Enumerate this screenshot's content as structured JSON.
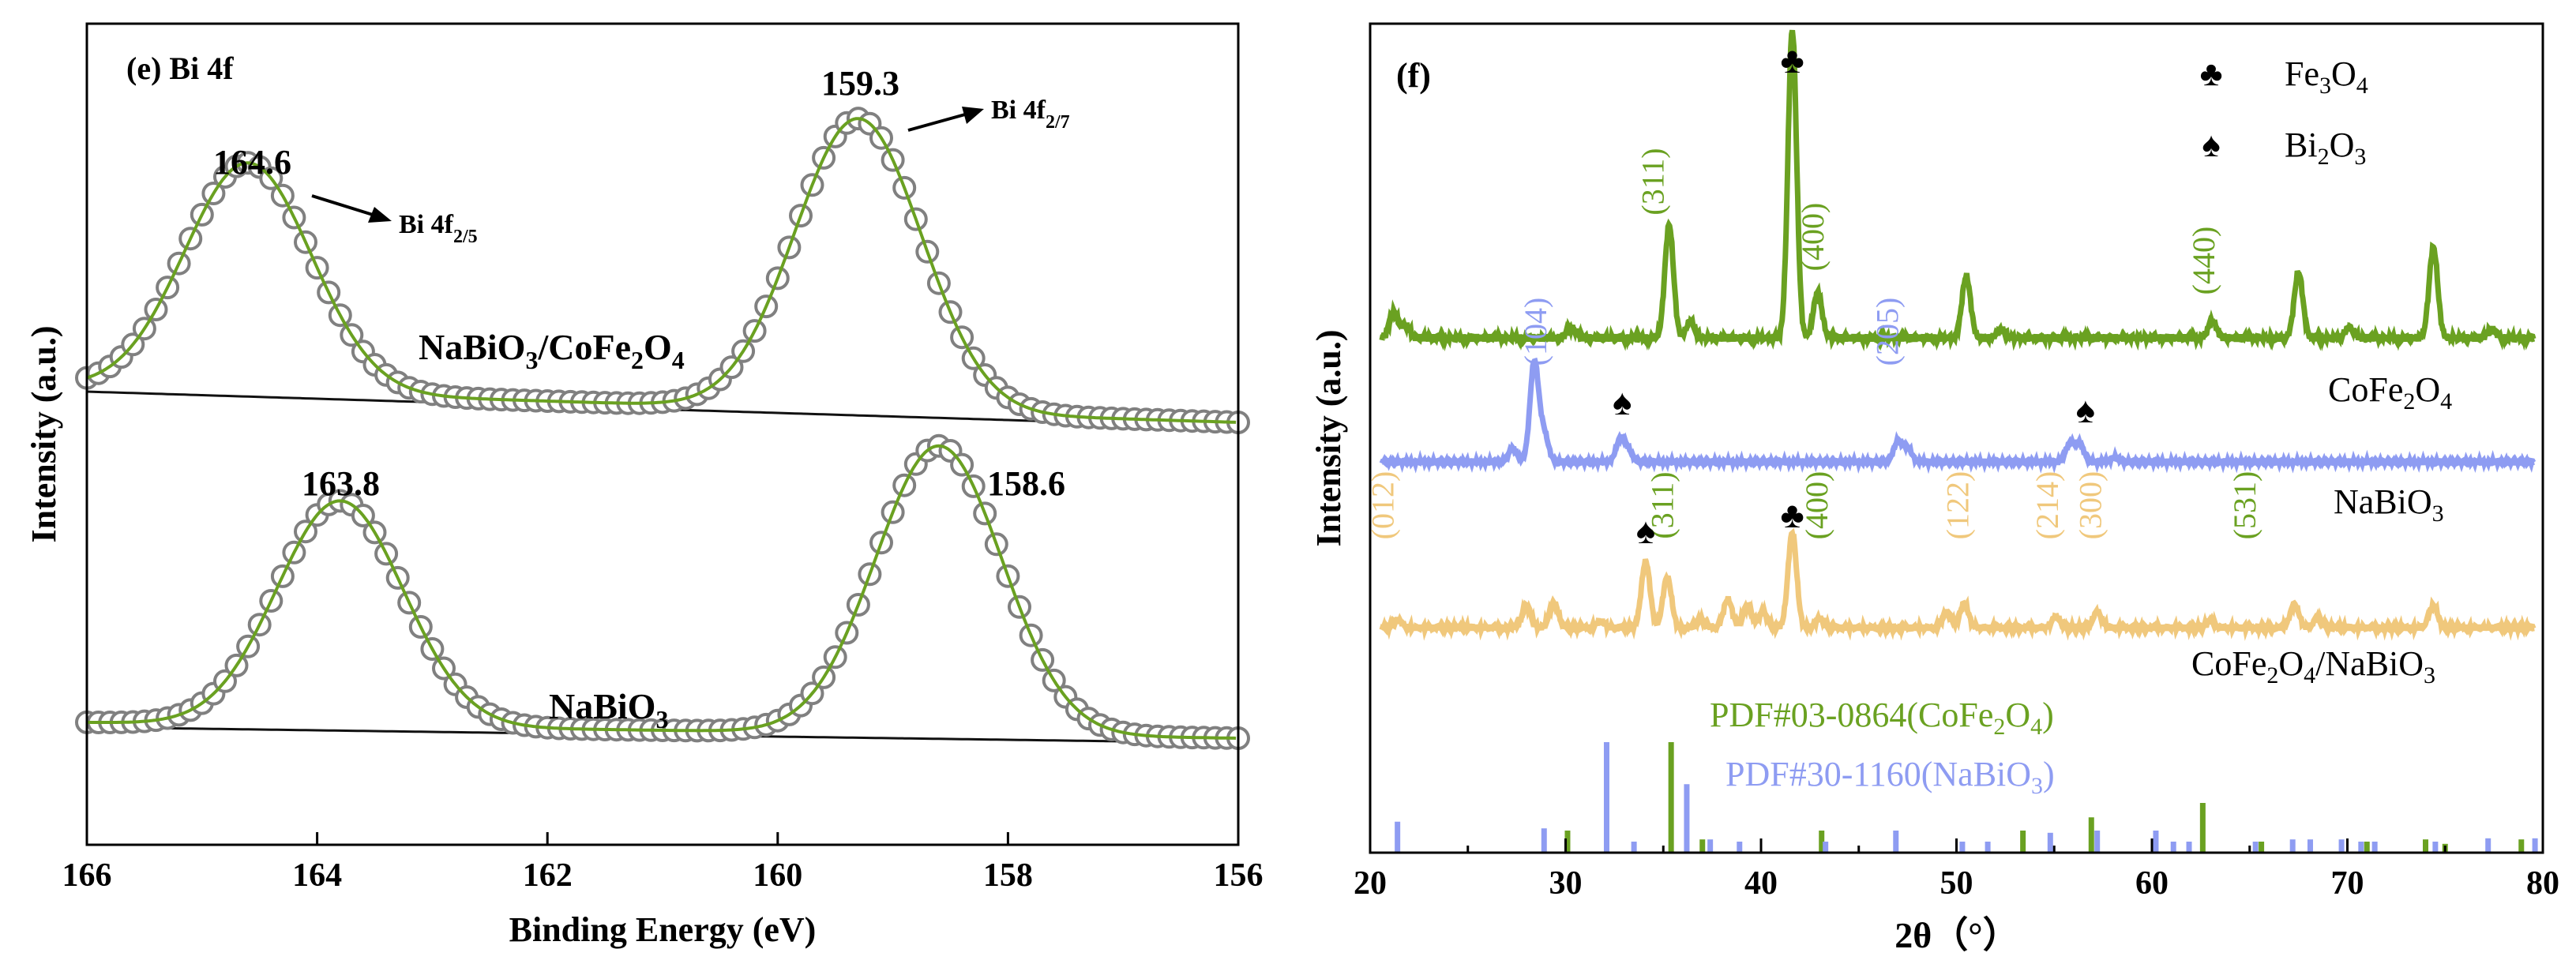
{
  "chart_data": [
    {
      "type": "line",
      "panel_label": "(e) Bi 4f",
      "xlabel": "Binding Energy (eV)",
      "ylabel": "Intensity (a.u.)",
      "xlim": [
        166,
        156
      ],
      "x_ticks": [
        "166",
        "164",
        "162",
        "160",
        "158",
        "156"
      ],
      "series": [
        {
          "name": "NaBiO3/CoFe2O4",
          "label_main": "NaBiO",
          "label_sub1": "3",
          "label_mid": "/CoFe",
          "label_sub2": "2",
          "label_o": "O",
          "label_sub3": "4",
          "peaks": [
            {
              "center": 164.6,
              "label": "164.6",
              "assignment": "Bi 4f",
              "assignment_sub": "2/5"
            },
            {
              "center": 159.3,
              "label": "159.3",
              "assignment": "Bi 4f",
              "assignment_sub": "2/7"
            }
          ]
        },
        {
          "name": "NaBiO3",
          "label_main": "NaBiO",
          "label_sub1": "3",
          "peaks": [
            {
              "center": 163.8,
              "label": "163.8"
            },
            {
              "center": 158.6,
              "label": "158.6"
            }
          ]
        }
      ],
      "colors": {
        "fit": "#6aa121",
        "markers": "#808080",
        "background": "#111111"
      }
    },
    {
      "type": "line",
      "panel_label": "(f)",
      "xlabel": "2θ（°）",
      "ylabel": "Intensity (a.u.)",
      "xlim": [
        20,
        80
      ],
      "x_ticks": [
        "20",
        "30",
        "40",
        "50",
        "60",
        "70",
        "80"
      ],
      "legend": {
        "position": "top-right",
        "items": [
          {
            "symbol": "♣",
            "label": "Fe",
            "sub": "3",
            "label2": "O",
            "sub2": "4"
          },
          {
            "symbol": "♠",
            "label": "Bi",
            "sub": "2",
            "label2": "O",
            "sub2": "3"
          }
        ]
      },
      "series": [
        {
          "name": "CoFe2O4",
          "color": "#6aa121",
          "label_parts": [
            "CoFe",
            "2",
            "O",
            "4"
          ],
          "peaks": [
            [
              21.2,
              0.12
            ],
            [
              21.8,
              0.06
            ],
            [
              30.3,
              0.05
            ],
            [
              35.3,
              0.55
            ],
            [
              36.4,
              0.08
            ],
            [
              41.6,
              1.5
            ],
            [
              42.9,
              0.22
            ],
            [
              50.5,
              0.3
            ],
            [
              52.3,
              0.04
            ],
            [
              63.1,
              0.08
            ],
            [
              67.5,
              0.32
            ],
            [
              70.1,
              0.05
            ],
            [
              74.4,
              0.44
            ],
            [
              77.4,
              0.04
            ]
          ],
          "hkl": [
            {
              "x": 35.0,
              "label": "(311)"
            },
            {
              "x": 43.2,
              "label": "(400)"
            },
            {
              "x": 63.2,
              "label": "(440)"
            }
          ],
          "markers": [
            {
              "x": 41.6,
              "symbol": "♣"
            }
          ]
        },
        {
          "name": "NaBiO3",
          "color": "#8e9cf2",
          "label_parts": [
            "NaBiO",
            "3"
          ],
          "peaks": [
            [
              27.3,
              0.12
            ],
            [
              28.4,
              0.9
            ],
            [
              28.9,
              0.25
            ],
            [
              32.8,
              0.2
            ],
            [
              33.2,
              0.1
            ],
            [
              47.0,
              0.18
            ],
            [
              47.5,
              0.12
            ],
            [
              55.8,
              0.16
            ],
            [
              56.3,
              0.16
            ],
            [
              58.1,
              0.04
            ]
          ],
          "hkl": [
            {
              "x": 29.0,
              "label": "(104)"
            },
            {
              "x": 47.0,
              "label": "(205)"
            }
          ],
          "markers": [
            {
              "x": 32.9,
              "symbol": "♠"
            },
            {
              "x": 56.6,
              "symbol": "♠"
            }
          ]
        },
        {
          "name": "CoFe2O4/NaBiO3",
          "color": "#f0c87c",
          "label_parts": [
            "CoFe",
            "2",
            "O",
            "4",
            "/NaBiO",
            "3"
          ],
          "peaks": [
            [
              21.4,
              0.05
            ],
            [
              28.0,
              0.14
            ],
            [
              29.4,
              0.16
            ],
            [
              31.8,
              0.04
            ],
            [
              34.1,
              0.42
            ],
            [
              35.2,
              0.32
            ],
            [
              36.9,
              0.05
            ],
            [
              38.3,
              0.18
            ],
            [
              39.3,
              0.14
            ],
            [
              40.1,
              0.1
            ],
            [
              41.6,
              0.6
            ],
            [
              43.0,
              0.06
            ],
            [
              49.5,
              0.1
            ],
            [
              50.4,
              0.15
            ],
            [
              55.1,
              0.07
            ],
            [
              57.2,
              0.1
            ],
            [
              63.0,
              0.04
            ],
            [
              67.3,
              0.15
            ],
            [
              68.5,
              0.06
            ],
            [
              74.4,
              0.14
            ]
          ],
          "hkl": [
            {
              "x": 21.2,
              "label": "(012)",
              "color": "#f0c87c"
            },
            {
              "x": 35.5,
              "label": "(311)",
              "color": "#6aa121"
            },
            {
              "x": 43.4,
              "label": "(400)",
              "color": "#6aa121"
            },
            {
              "x": 50.6,
              "label": "(122)",
              "color": "#f0c87c"
            },
            {
              "x": 55.2,
              "label": "(214)",
              "color": "#f0c87c"
            },
            {
              "x": 57.4,
              "label": "(300)",
              "color": "#f0c87c"
            },
            {
              "x": 65.3,
              "label": "(531)",
              "color": "#6aa121"
            }
          ],
          "markers": [
            {
              "x": 34.1,
              "symbol": "♠"
            },
            {
              "x": 41.6,
              "symbol": "♣"
            }
          ]
        }
      ],
      "references": [
        {
          "name": "PDF#03-0864(CoFe2O4)",
          "color": "#6aa121",
          "label_parts": [
            "PDF#03-0864(CoFe",
            "2",
            "O",
            "4",
            ")"
          ],
          "sticks": [
            [
              30.1,
              0.2
            ],
            [
              35.4,
              1.0
            ],
            [
              37.0,
              0.12
            ],
            [
              43.1,
              0.2
            ],
            [
              53.4,
              0.2
            ],
            [
              56.9,
              0.32
            ],
            [
              62.6,
              0.45
            ],
            [
              65.6,
              0.1
            ],
            [
              71.0,
              0.1
            ],
            [
              74.0,
              0.12
            ],
            [
              75.0,
              0.08
            ],
            [
              78.9,
              0.12
            ]
          ]
        },
        {
          "name": "PDF#30-1160(NaBiO3)",
          "color": "#8e9cf2",
          "label_parts": [
            "PDF#30-1160(NaBiO",
            "3",
            ")"
          ],
          "sticks": [
            [
              21.4,
              0.28
            ],
            [
              28.9,
              0.22
            ],
            [
              32.1,
              1.0
            ],
            [
              33.5,
              0.1
            ],
            [
              36.2,
              0.62
            ],
            [
              37.4,
              0.12
            ],
            [
              38.9,
              0.1
            ],
            [
              43.3,
              0.1
            ],
            [
              46.9,
              0.2
            ],
            [
              50.3,
              0.1
            ],
            [
              51.6,
              0.1
            ],
            [
              54.8,
              0.18
            ],
            [
              57.2,
              0.2
            ],
            [
              60.2,
              0.2
            ],
            [
              61.1,
              0.1
            ],
            [
              61.9,
              0.1
            ],
            [
              65.3,
              0.1
            ],
            [
              67.2,
              0.12
            ],
            [
              68.1,
              0.12
            ],
            [
              69.7,
              0.12
            ],
            [
              70.7,
              0.1
            ],
            [
              71.4,
              0.1
            ],
            [
              74.5,
              0.1
            ],
            [
              77.2,
              0.13
            ],
            [
              79.6,
              0.13
            ]
          ]
        }
      ]
    }
  ]
}
